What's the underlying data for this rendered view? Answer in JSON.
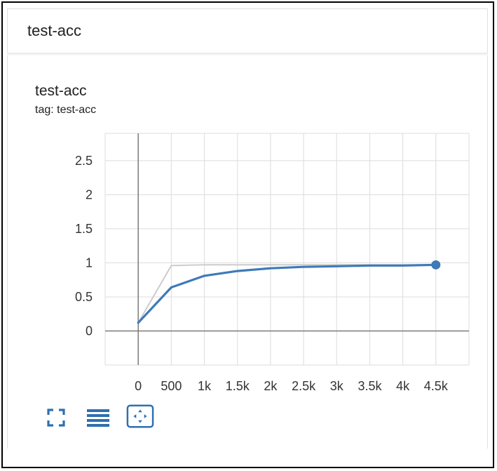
{
  "card": {
    "title": "test-acc"
  },
  "chart": {
    "title": "test-acc",
    "tag": "tag: test-acc"
  },
  "chart_data": {
    "type": "line",
    "title": "test-acc",
    "subtitle": "tag: test-acc",
    "xlim": [
      -500,
      5000
    ],
    "ylim": [
      -0.5,
      2.9
    ],
    "x_ticks": [
      0,
      500,
      1000,
      1500,
      2000,
      2500,
      3000,
      3500,
      4000,
      4500
    ],
    "x_tick_labels": [
      "0",
      "500",
      "1k",
      "1.5k",
      "2k",
      "2.5k",
      "3k",
      "3.5k",
      "4k",
      "4.5k"
    ],
    "y_ticks": [
      0,
      0.5,
      1,
      1.5,
      2,
      2.5
    ],
    "y_tick_labels": [
      "0",
      "0.5",
      "1",
      "1.5",
      "2",
      "2.5"
    ],
    "grid": true,
    "series": [
      {
        "role": "raw",
        "color": "#cccccc",
        "x": [
          0,
          500,
          1000,
          1500,
          2000,
          2500,
          3000,
          3500,
          4000,
          4500
        ],
        "y": [
          0.12,
          0.96,
          0.97,
          0.97,
          0.97,
          0.97,
          0.97,
          0.97,
          0.97,
          0.97
        ]
      },
      {
        "role": "smoothed",
        "color": "#3e7ab8",
        "x": [
          0,
          500,
          1000,
          1500,
          2000,
          2500,
          3000,
          3500,
          4000,
          4500
        ],
        "y": [
          0.12,
          0.64,
          0.81,
          0.88,
          0.92,
          0.94,
          0.95,
          0.96,
          0.96,
          0.97
        ]
      }
    ]
  },
  "toolbar": {
    "buttons": [
      {
        "icon": "fullscreen-icon"
      },
      {
        "icon": "toggle-log-scale-icon"
      },
      {
        "icon": "fit-domain-icon"
      }
    ],
    "icon_color": "#2f6fb0"
  }
}
